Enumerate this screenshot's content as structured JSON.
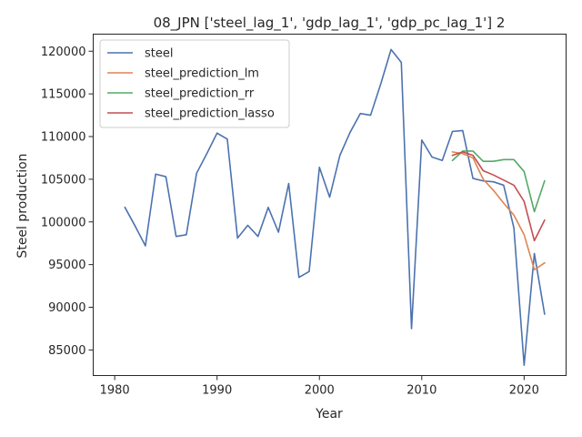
{
  "chart_data": {
    "type": "line",
    "title": "08_JPN ['steel_lag_1', 'gdp_lag_1', 'gdp_pc_lag_1'] 2",
    "xlabel": "Year",
    "ylabel": "Steel production",
    "xlim": [
      1977.9,
      2024.1
    ],
    "ylim": [
      82000,
      122000
    ],
    "xticks": [
      1980,
      1990,
      2000,
      2010,
      2020
    ],
    "yticks": [
      85000,
      90000,
      95000,
      100000,
      105000,
      110000,
      115000,
      120000
    ],
    "legend_position": "top-left",
    "grid": false,
    "series": [
      {
        "name": "steel",
        "color": "#4c72b0",
        "x": [
          1981,
          1982,
          1983,
          1984,
          1985,
          1986,
          1987,
          1988,
          1989,
          1990,
          1991,
          1992,
          1993,
          1994,
          1995,
          1996,
          1997,
          1998,
          1999,
          2000,
          2001,
          2002,
          2003,
          2004,
          2005,
          2006,
          2007,
          2008,
          2009,
          2010,
          2011,
          2012,
          2013,
          2014,
          2015,
          2016,
          2017,
          2018,
          2019,
          2020,
          2021,
          2022
        ],
        "values": [
          101700,
          99500,
          97200,
          105600,
          105300,
          98300,
          98500,
          105700,
          108000,
          110400,
          109700,
          98100,
          99600,
          98300,
          101700,
          98800,
          104500,
          93500,
          94200,
          106400,
          102900,
          107800,
          110500,
          112700,
          112500,
          116200,
          120200,
          118700,
          87500,
          109600,
          107600,
          107200,
          110600,
          110700,
          105100,
          104800,
          104700,
          104300,
          99300,
          83200,
          96300,
          89200
        ]
      },
      {
        "name": "steel_prediction_lm",
        "color": "#dd8452",
        "x": [
          2013,
          2014,
          2015,
          2016,
          2017,
          2018,
          2019,
          2020,
          2021,
          2022
        ],
        "values": [
          108200,
          108000,
          107500,
          105000,
          103700,
          102200,
          100800,
          98500,
          94400,
          95200
        ]
      },
      {
        "name": "steel_prediction_rr",
        "color": "#55a868",
        "x": [
          2013,
          2014,
          2015,
          2016,
          2017,
          2018,
          2019,
          2020,
          2021,
          2022
        ],
        "values": [
          107200,
          108300,
          108300,
          107100,
          107100,
          107300,
          107300,
          105900,
          101200,
          104800
        ]
      },
      {
        "name": "steel_prediction_lasso",
        "color": "#c44e52",
        "x": [
          2013,
          2014,
          2015,
          2016,
          2017,
          2018,
          2019,
          2020,
          2021,
          2022
        ],
        "values": [
          107800,
          108200,
          107800,
          106000,
          105500,
          104900,
          104300,
          102400,
          97800,
          100200
        ]
      }
    ]
  }
}
